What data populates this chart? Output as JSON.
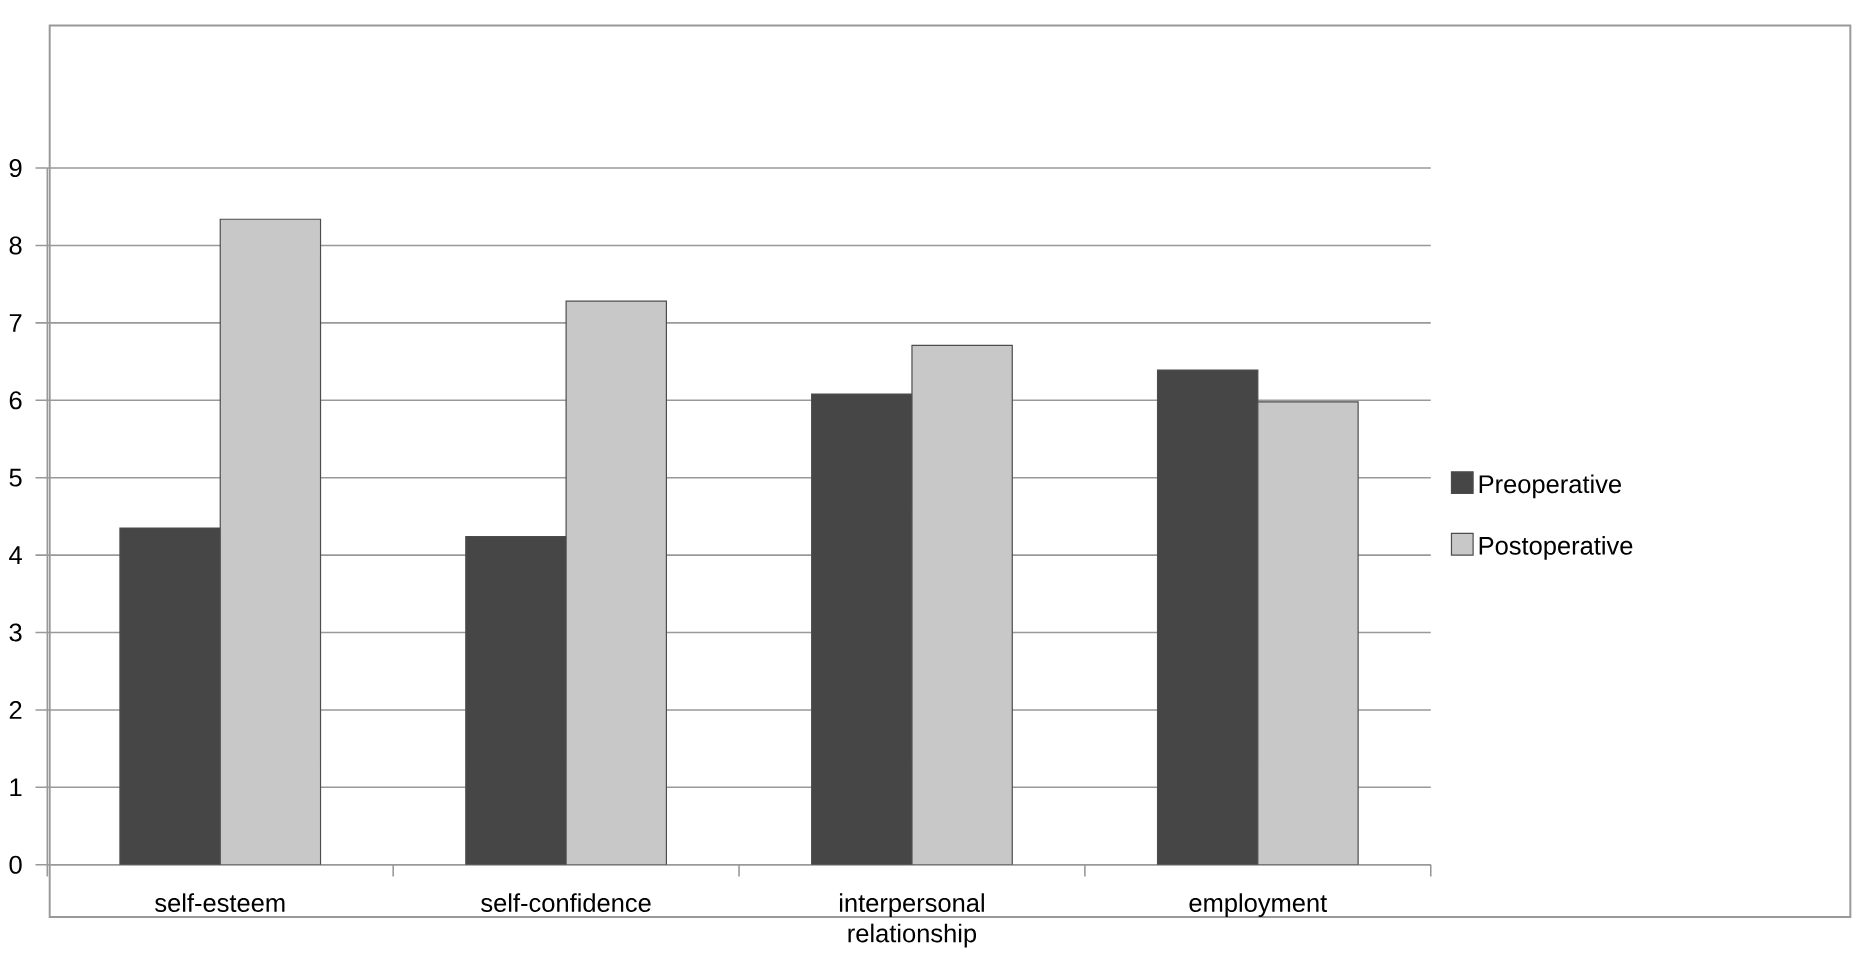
{
  "chart_data": {
    "type": "bar",
    "categories": [
      "self-esteem",
      "self-confidence",
      "interpersonal relationship",
      "employment"
    ],
    "series": [
      {
        "name": "Preoperative",
        "color": "#464646",
        "values": [
          4.35,
          4.24,
          6.08,
          6.39
        ]
      },
      {
        "name": "Postoperative",
        "color": "#c8c8c8",
        "values": [
          8.34,
          7.28,
          6.71,
          5.98
        ]
      }
    ],
    "ylim": [
      0,
      9
    ],
    "yticks": [
      0,
      1,
      2,
      3,
      4,
      5,
      6,
      7,
      8,
      9
    ],
    "grid": "y",
    "legend": "right"
  }
}
